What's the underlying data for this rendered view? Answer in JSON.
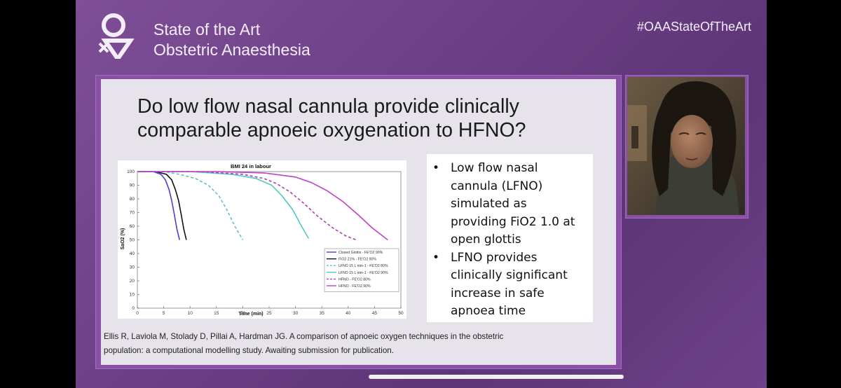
{
  "header": {
    "brand_line1": "State of the Art",
    "brand_line2": "Obstetric Anaesthesia",
    "hashtag": "#OAAStateOfTheArt",
    "logo_icon": "oaa-logo-icon"
  },
  "slide": {
    "title_line1": "Do low flow nasal cannula provide clinically",
    "title_line2": "comparable apnoeic oxygenation to HFNO?",
    "bullets": [
      {
        "lines": [
          "Low flow nasal",
          "cannula (LFNO)",
          "simulated as",
          "providing FiO2 1.0 at",
          "open glottis"
        ]
      },
      {
        "lines": [
          "LFNO provides",
          "clinically significant",
          "increase in safe",
          "apnoea time"
        ]
      }
    ],
    "citation_line1": "Ellis R, Laviola M, Stolady D, Pillai A, Hardman JG. A comparison of apnoeic oxygen techniques in the obstetric",
    "citation_line2": "population: a computational modelling study. Awaiting submission for publication."
  },
  "chart_data": {
    "type": "line",
    "title": "BMI 24 in labour",
    "xlabel": "Time (min)",
    "ylabel": "SaO2 (%)",
    "xlim": [
      0,
      50
    ],
    "ylim": [
      0,
      100
    ],
    "xticks": [
      "0",
      "5",
      "10",
      "15",
      "20",
      "25",
      "30",
      "35",
      "40",
      "45",
      "50"
    ],
    "yticks": [
      "0",
      "10",
      "20",
      "30",
      "40",
      "50",
      "60",
      "70",
      "80",
      "90",
      "100"
    ],
    "legend_position": "bottom-right",
    "series": [
      {
        "name": "Closed Glottis - FE'O2 90%",
        "color": "#4a3fd0",
        "dash": false,
        "x": [
          0,
          3,
          4.5,
          5.3,
          6,
          6.5,
          7,
          7.5,
          8
        ],
        "y": [
          100,
          100,
          98,
          94,
          87,
          79,
          69,
          58,
          50
        ]
      },
      {
        "name": "FiO2 21% - FE'O2 90%",
        "color": "#111111",
        "dash": false,
        "x": [
          0,
          3.5,
          5.5,
          6.5,
          7.2,
          7.8,
          8.3,
          8.8,
          9.3
        ],
        "y": [
          100,
          100,
          98,
          94,
          87,
          79,
          69,
          58,
          50
        ]
      },
      {
        "name": "LFNO 15 L min-1 - FE'O2 80%",
        "color": "#5fc1c9",
        "dash": true,
        "x": [
          0,
          5,
          8,
          11,
          13.5,
          15.5,
          17,
          18.5,
          20
        ],
        "y": [
          100,
          100,
          98,
          95,
          90,
          82,
          72,
          60,
          50
        ]
      },
      {
        "name": "LFNO 15 L min-1 - FE'O2 90%",
        "color": "#4cc9c0",
        "dash": false,
        "x": [
          0,
          10,
          18,
          22.5,
          25.5,
          27.5,
          29.5,
          31,
          32.5
        ],
        "y": [
          100,
          100,
          98,
          95,
          90,
          82,
          72,
          61,
          51
        ]
      },
      {
        "name": "HFNO - FE'O2 80%",
        "color": "#b33ab8",
        "dash": true,
        "x": [
          0,
          12,
          20,
          24,
          26.5,
          29,
          31.5,
          34,
          37,
          39.5,
          41.5
        ],
        "y": [
          100,
          100,
          98,
          95,
          91,
          85,
          77,
          68,
          59,
          53,
          50
        ]
      },
      {
        "name": "HFNO - FE'O2 90%",
        "color": "#c23fc8",
        "dash": false,
        "x": [
          0,
          15,
          24,
          30,
          33,
          36,
          39,
          42,
          44.5,
          46.5,
          47.5
        ],
        "y": [
          100,
          100,
          99,
          96,
          92,
          86,
          78,
          68,
          59,
          53,
          50
        ]
      }
    ]
  }
}
